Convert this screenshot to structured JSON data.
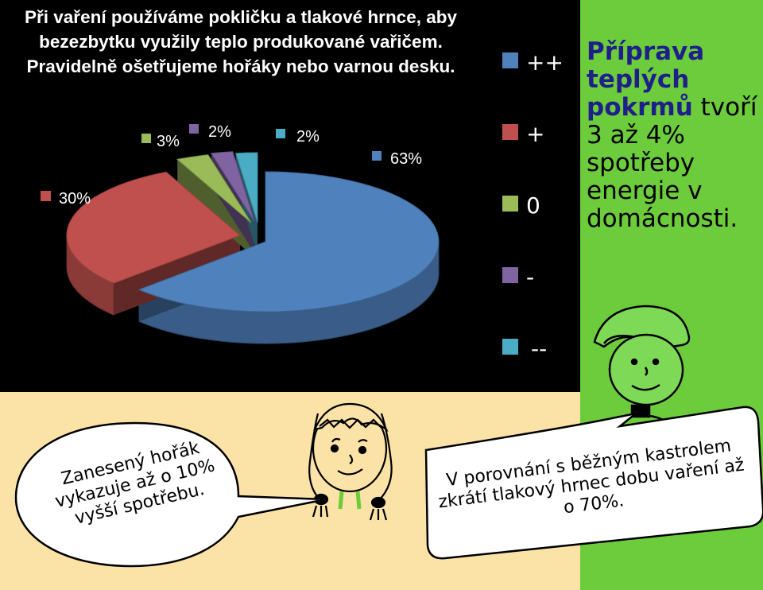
{
  "intro_text": "Při vaření používáme pokličku a tlakové hrnce, aby bezezbytku využily teplo produkované vařičem. Pravidelně ošetřujeme hořáky nebo varnou desku.",
  "fact": {
    "bold": "Příprava teplých pokrmů",
    "rest": " tvoří 3 až 4% spotřeby energie v domácnosti."
  },
  "bubble_left": "Zanesený hořák vykazuje až o 10% vyšší spotřebu.",
  "bubble_right": "V porovnání s běžným kastrolem zkrátí tlakový hrnec dobu vaření až o 70%.",
  "chart_data": {
    "type": "pie",
    "categories": [
      "++",
      "+",
      "0",
      "-",
      "--"
    ],
    "values": [
      63,
      30,
      3,
      2,
      2
    ],
    "labels": [
      "63%",
      "30%",
      "3%",
      "2%",
      "2%"
    ],
    "colors": [
      "#4f81bd",
      "#c0504d",
      "#9bbb59",
      "#8064a2",
      "#4bacc6"
    ],
    "legend_position": "right"
  }
}
